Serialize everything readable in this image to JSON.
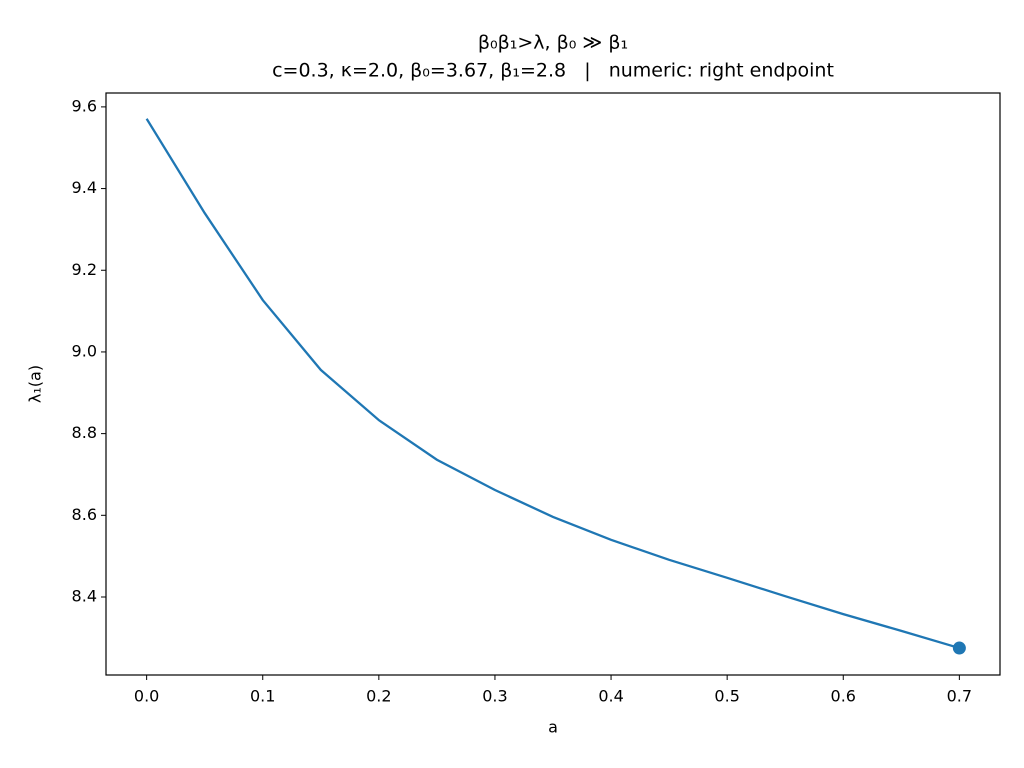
{
  "chart_data": {
    "type": "line",
    "title": "β₀β₁>λ, β₀ ≫ β₁",
    "subtitle": "c=0.3, κ=2.0, β₀=3.67, β₁=2.8   |   numeric: right endpoint",
    "x_label": "a",
    "y_label": "λ₁(a)",
    "x": [
      0.0,
      0.05,
      0.1,
      0.15,
      0.2,
      0.25,
      0.3,
      0.35,
      0.4,
      0.45,
      0.5,
      0.55,
      0.6,
      0.65,
      0.7
    ],
    "series": [
      {
        "color": "#1f77b4",
        "values": [
          9.571,
          9.34,
          9.127,
          8.956,
          8.833,
          8.736,
          8.662,
          8.596,
          8.54,
          8.491,
          8.447,
          8.402,
          8.358,
          8.317,
          8.275
        ]
      }
    ],
    "endpoint": {
      "x": 0.7,
      "y": 8.275,
      "color": "#1f77b4"
    },
    "xlim": [
      -0.035,
      0.735
    ],
    "ylim": [
      8.209,
      9.634
    ],
    "xticks": [
      {
        "value": 0,
        "label": "0.0"
      },
      0.1,
      0.2,
      0.3,
      0.4,
      0.5,
      0.6,
      0.7
    ],
    "yticks": [
      8.4,
      8.6,
      8.8,
      {
        "value": 9,
        "label": "9.0"
      },
      9.2,
      9.4,
      9.6
    ],
    "grid": false
  }
}
